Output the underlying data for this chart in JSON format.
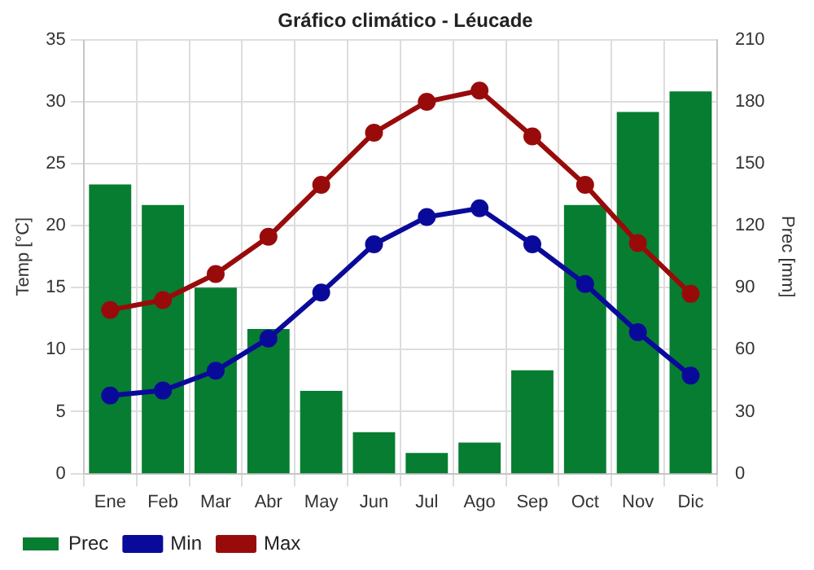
{
  "chart_data": {
    "type": "bar",
    "title": "Gráfico climático - Léucade",
    "ylabel": "Temp [°C]",
    "y2label": "Prec [mm]",
    "categories": [
      "Ene",
      "Feb",
      "Mar",
      "Abr",
      "May",
      "Jun",
      "Jul",
      "Ago",
      "Sep",
      "Oct",
      "Nov",
      "Dic"
    ],
    "series": [
      {
        "name": "Prec",
        "axis": "y2",
        "color": "#077d31",
        "values": [
          140,
          130,
          90,
          70,
          40,
          20,
          10,
          15,
          50,
          130,
          175,
          185
        ]
      },
      {
        "name": "Min",
        "type": "line",
        "color": "#0a0a9a",
        "values": [
          6.3,
          6.7,
          8.3,
          10.9,
          14.6,
          18.5,
          20.7,
          21.4,
          18.5,
          15.3,
          11.4,
          7.9
        ]
      },
      {
        "name": "Max",
        "type": "line",
        "color": "#990b0b",
        "values": [
          13.2,
          14.0,
          16.1,
          19.1,
          23.3,
          27.5,
          30.0,
          30.9,
          27.2,
          23.3,
          18.6,
          14.5
        ]
      }
    ],
    "ylim": [
      0,
      35
    ],
    "yticks": [
      0,
      5,
      10,
      15,
      20,
      25,
      30,
      35
    ],
    "y2lim": [
      0,
      210
    ],
    "y2ticks": [
      0,
      30,
      60,
      90,
      120,
      150,
      180,
      210
    ],
    "grid": true,
    "legend": "bottom left",
    "marker": "circle",
    "line_style": "solid"
  }
}
